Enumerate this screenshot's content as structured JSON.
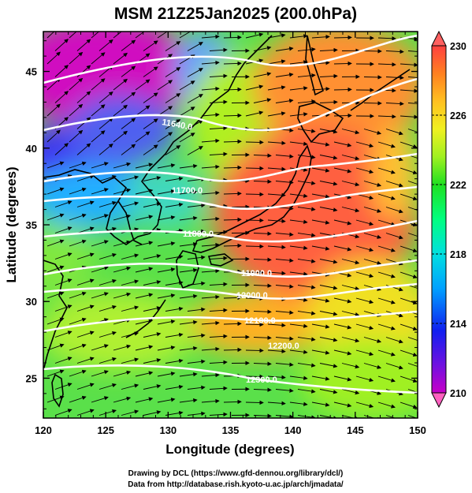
{
  "title": "MSM 21Z25Jan2025 (200.0hPa)",
  "axes": {
    "xlabel": "Longitude (degrees)",
    "ylabel": "Latitude  (degrees)",
    "x_ticks": [
      "120",
      "125",
      "130",
      "135",
      "140",
      "145",
      "150"
    ],
    "y_ticks": [
      "25",
      "30",
      "35",
      "40",
      "45"
    ],
    "xlim": [
      120,
      150
    ],
    "ylim": [
      22.4,
      47.6
    ]
  },
  "colorbar": {
    "range": [
      210,
      230
    ],
    "labels": [
      "230",
      "226",
      "222",
      "218",
      "214",
      "210"
    ],
    "stops": [
      "#c800c8",
      "#7010e0",
      "#1020f0",
      "#00a0ff",
      "#00e0e0",
      "#00ff80",
      "#20e020",
      "#a0f020",
      "#f0f020",
      "#ffc020",
      "#ff8020",
      "#ff4040",
      "#ff6060"
    ]
  },
  "contours": {
    "labels": [
      "11640.0",
      "11700.0",
      "11800.0",
      "11900.0",
      "12000.0",
      "12100.0",
      "12200.0",
      "12300.0"
    ]
  },
  "credits": {
    "line1": "Drawing by DCL (https://www.gfd-dennou.org/library/dcl/)",
    "line2": "Data from http://database.rish.kyoto-u.ac.jp/arch/jmadata/"
  },
  "chart_data": {
    "type": "heatmap",
    "title": "MSM 21Z25Jan2025 (200.0hPa)",
    "xlabel": "Longitude (degrees)",
    "ylabel": "Latitude  (degrees)",
    "xlim": [
      120,
      150
    ],
    "ylim": [
      22.4,
      47.6
    ],
    "color_range": [
      210,
      230
    ],
    "overlays": [
      "geopotential height contours",
      "wind vectors",
      "coastlines"
    ],
    "contour_levels": [
      11640,
      11700,
      11800,
      11900,
      12000,
      12100,
      12200,
      12300
    ]
  }
}
